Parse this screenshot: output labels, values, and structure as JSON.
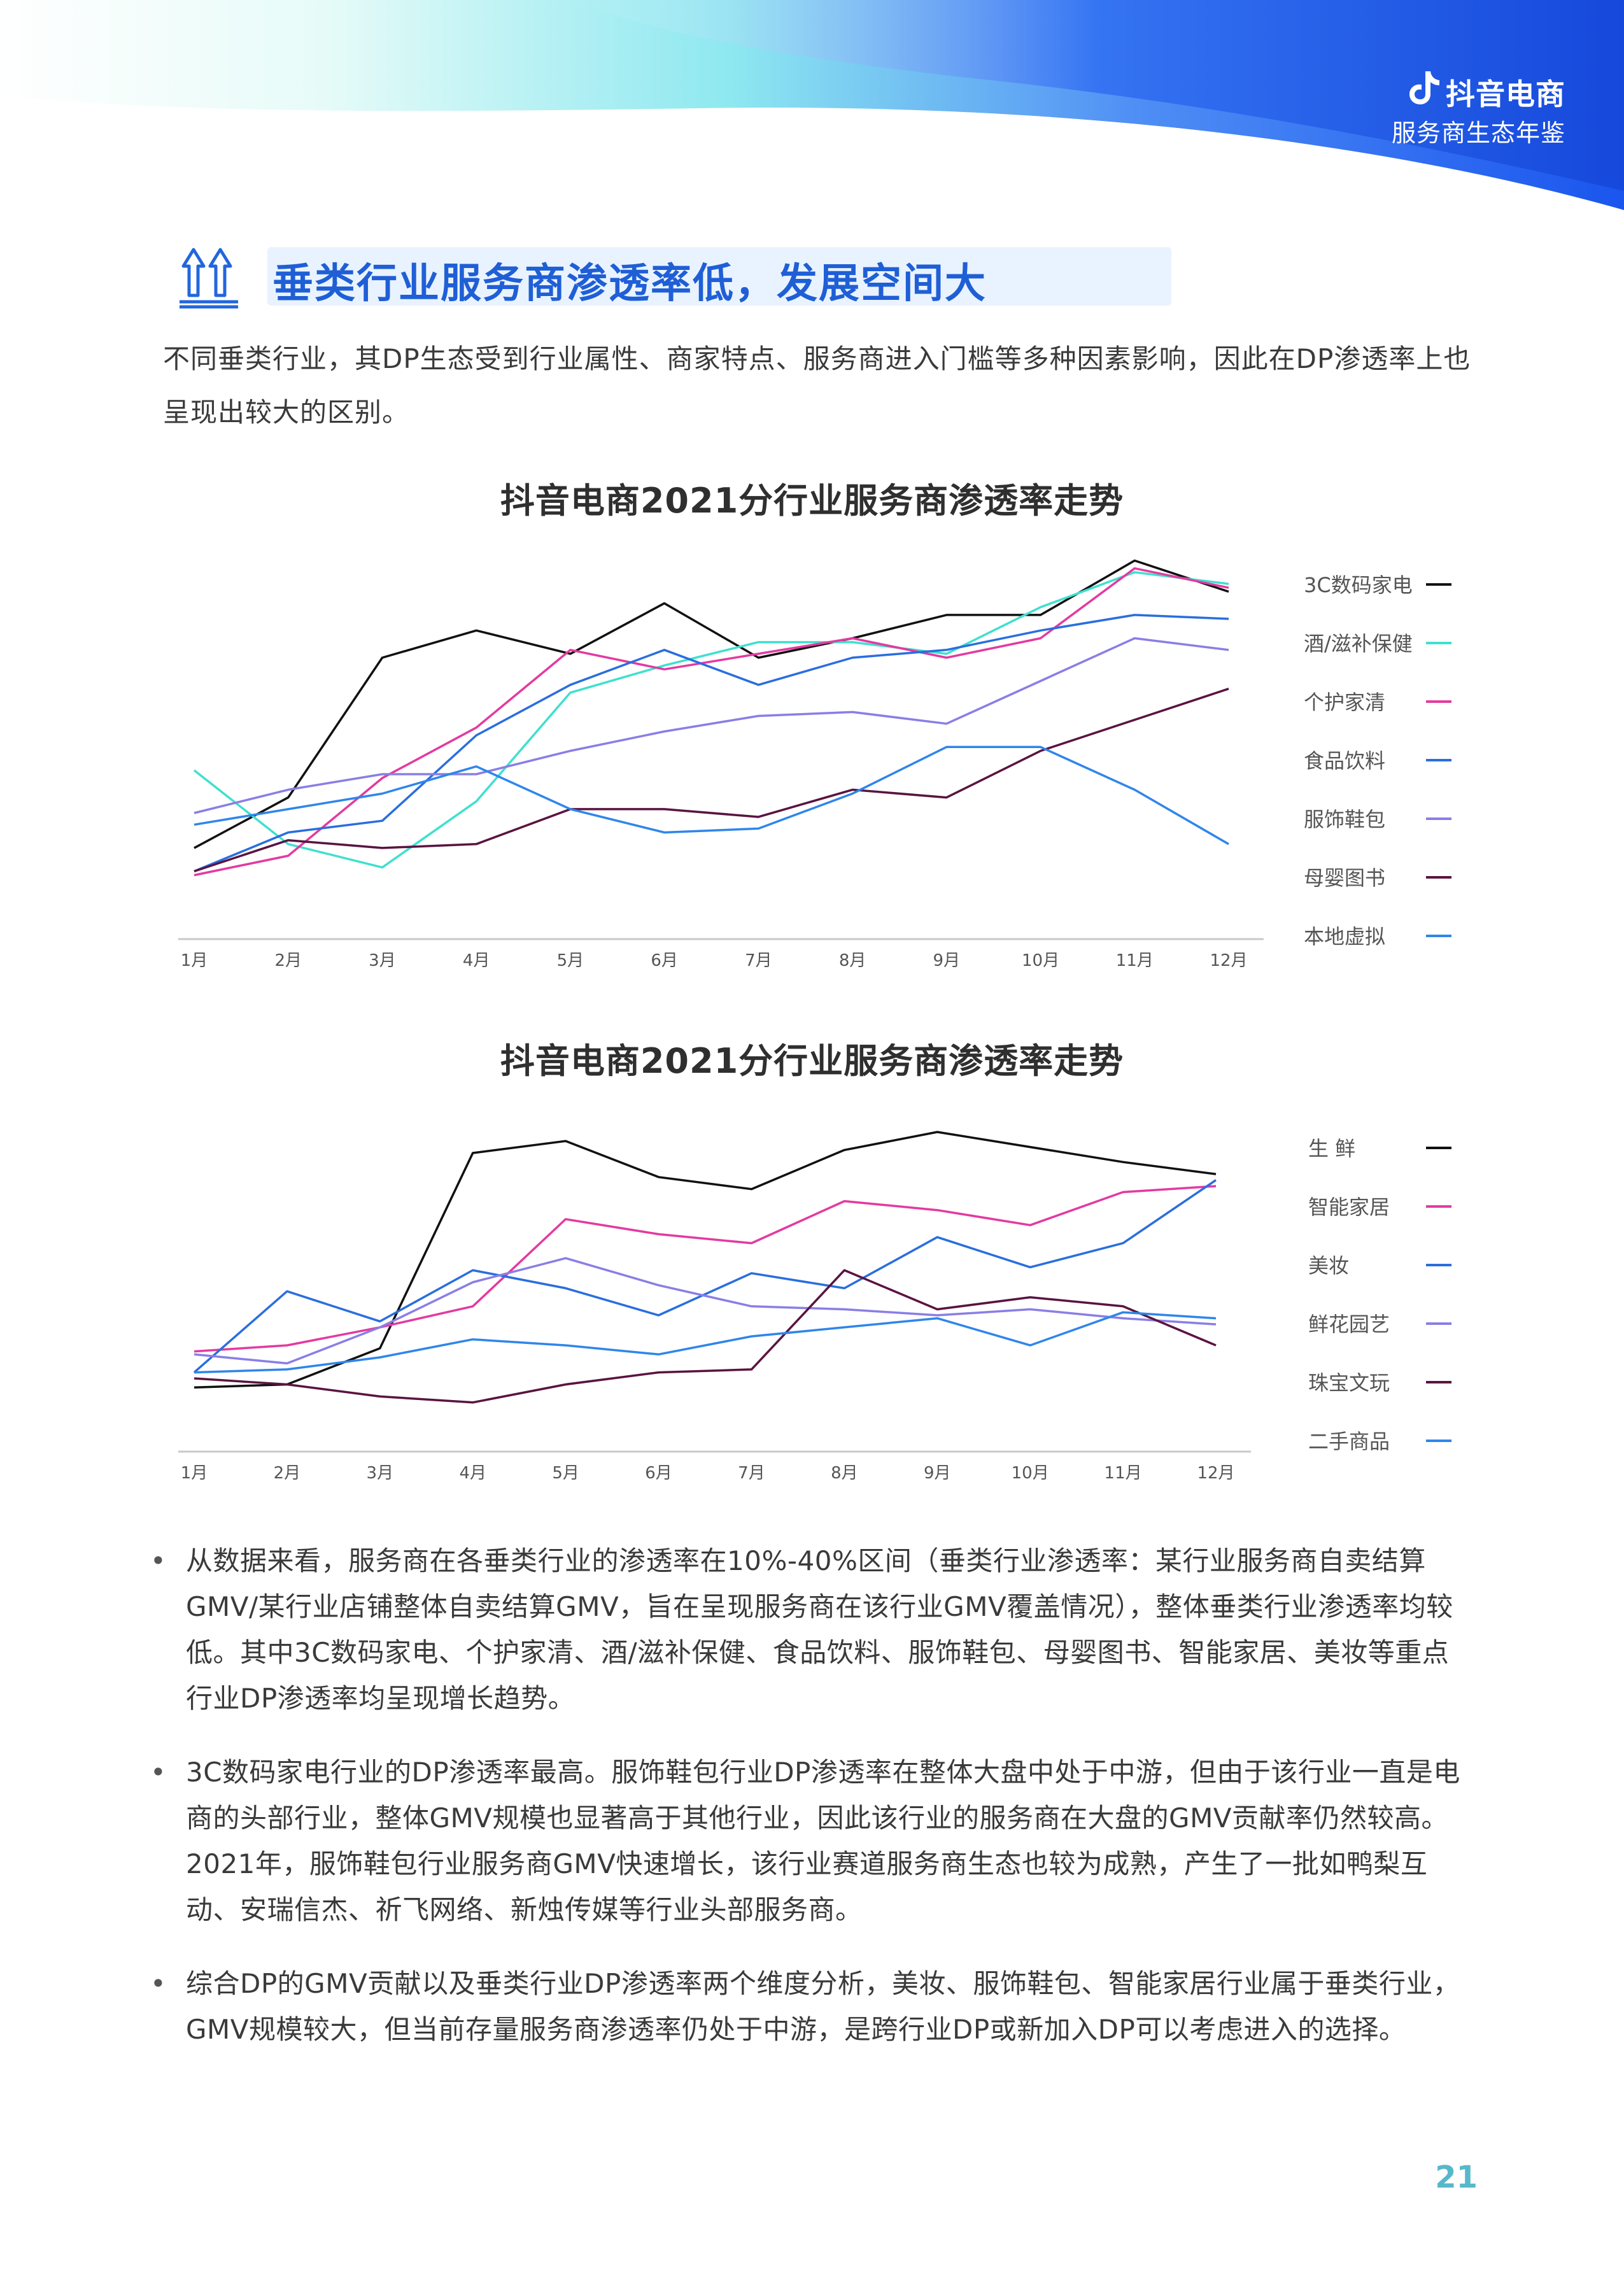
{
  "header": {
    "brand_name": "抖音电商",
    "brand_subtitle": "服务商生态年鉴"
  },
  "section": {
    "heading": "垂类行业服务商渗透率低，发展空间大",
    "intro": "不同垂类行业，其DP生态受到行业属性、商家特点、服务商进入门槛等多种因素影响，因此在DP渗透率上也呈现出较大的区别。"
  },
  "chart_data": [
    {
      "type": "line",
      "title": "抖音电商2021分行业服务商渗透率走势",
      "categories": [
        "1月",
        "2月",
        "3月",
        "4月",
        "5月",
        "6月",
        "7月",
        "8月",
        "9月",
        "10月",
        "11月",
        "12月"
      ],
      "ylim": [
        0,
        100
      ],
      "grid": false,
      "legend": "right",
      "series": [
        {
          "name": "3C数码家电",
          "color": "#111111",
          "values": [
            21,
            34,
            70,
            77,
            71,
            84,
            70,
            75,
            81,
            81,
            95,
            87
          ]
        },
        {
          "name": "酒/滋补保健",
          "color": "#3fe0cf",
          "values": [
            41,
            22,
            16,
            33,
            61,
            68,
            74,
            74,
            71,
            83,
            92,
            89
          ]
        },
        {
          "name": "个护家清",
          "color": "#e33aa0",
          "values": [
            14,
            19,
            39,
            52,
            72,
            67,
            71,
            75,
            70,
            75,
            93,
            88
          ]
        },
        {
          "name": "食品饮料",
          "color": "#2a6ede",
          "values": [
            15,
            25,
            28,
            50,
            63,
            72,
            63,
            70,
            72,
            77,
            81,
            80
          ]
        },
        {
          "name": "服饰鞋包",
          "color": "#8a7ee6",
          "values": [
            30,
            36,
            40,
            40,
            46,
            51,
            55,
            56,
            53,
            64,
            75,
            72
          ]
        },
        {
          "name": "母婴图书",
          "color": "#5a1440",
          "values": [
            15,
            23,
            21,
            22,
            31,
            31,
            29,
            36,
            34,
            46,
            54,
            62
          ]
        },
        {
          "name": "本地虚拟",
          "color": "#2f86ea",
          "values": [
            27,
            31,
            35,
            42,
            31,
            25,
            26,
            35,
            47,
            47,
            36,
            22
          ]
        }
      ]
    },
    {
      "type": "line",
      "title": "抖音电商2021分行业服务商渗透率走势",
      "categories": [
        "1月",
        "2月",
        "3月",
        "4月",
        "5月",
        "6月",
        "7月",
        "8月",
        "9月",
        "10月",
        "11月",
        "12月"
      ],
      "ylim": [
        0,
        100
      ],
      "grid": false,
      "legend": "right",
      "series": [
        {
          "name": "生 鲜",
          "color": "#111111",
          "values": [
            15,
            16,
            28,
            93,
            97,
            85,
            81,
            94,
            100,
            95,
            90,
            86
          ]
        },
        {
          "name": "智能家居",
          "color": "#e33aa0",
          "values": [
            27,
            29,
            35,
            42,
            71,
            66,
            63,
            77,
            74,
            69,
            80,
            82
          ]
        },
        {
          "name": "美妆",
          "color": "#2a6ede",
          "values": [
            20,
            47,
            37,
            54,
            48,
            39,
            53,
            48,
            65,
            55,
            63,
            84
          ]
        },
        {
          "name": "鲜花园艺",
          "color": "#8a7ee6",
          "values": [
            26,
            23,
            35,
            50,
            58,
            49,
            42,
            41,
            39,
            41,
            38,
            36
          ]
        },
        {
          "name": "珠宝文玩",
          "color": "#5a1440",
          "values": [
            18,
            16,
            12,
            10,
            16,
            20,
            21,
            54,
            41,
            45,
            42,
            29
          ]
        },
        {
          "name": "二手商品",
          "color": "#2f86ea",
          "values": [
            20,
            21,
            25,
            31,
            29,
            26,
            32,
            35,
            38,
            29,
            40,
            38
          ]
        }
      ]
    }
  ],
  "bullets": [
    "从数据来看，服务商在各垂类行业的渗透率在10%-40%区间（垂类行业渗透率：某行业服务商自卖结算GMV/某行业店铺整体自卖结算GMV，旨在呈现服务商在该行业GMV覆盖情况），整体垂类行业渗透率均较低。其中3C数码家电、个护家清、酒/滋补保健、食品饮料、服饰鞋包、母婴图书、智能家居、美妆等重点行业DP渗透率均呈现增长趋势。",
    "3C数码家电行业的DP渗透率最高。服饰鞋包行业DP渗透率在整体大盘中处于中游，但由于该行业一直是电商的头部行业，整体GMV规模也显著高于其他行业，因此该行业的服务商在大盘的GMV贡献率仍然较高。2021年，服饰鞋包行业服务商GMV快速增长，该行业赛道服务商生态也较为成熟，产生了一批如鸭梨互动、安瑞信杰、祈飞网络、新烛传媒等行业头部服务商。",
    "综合DP的GMV贡献以及垂类行业DP渗透率两个维度分析，美妆、服饰鞋包、智能家居行业属于垂类行业，GMV规模较大，但当前存量服务商渗透率仍处于中游，是跨行业DP或新加入DP可以考虑进入的选择。"
  ],
  "bullet_marker": "•",
  "page_number": "21"
}
